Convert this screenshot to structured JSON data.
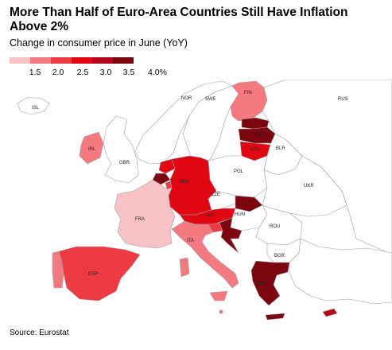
{
  "title": "More Than Half of Euro-Area Countries Still Have Inflation Above 2%",
  "subtitle": "Change in consumer price in June (YoY)",
  "source": "Source: Eurostat",
  "legend": {
    "ticks": [
      "1.5",
      "2.0",
      "2.5",
      "3.0",
      "3.5",
      "4.0%"
    ],
    "colors": [
      "#f9c2c5",
      "#f47a80",
      "#ee3b43",
      "#e00612",
      "#b3081a",
      "#7c0610"
    ]
  },
  "colors": {
    "non_euro_fill": "#ffffff",
    "border": "#9aa0a6",
    "sea": "#ffffff"
  },
  "countries": [
    {
      "code": "ISL",
      "label": "ISL",
      "bin": null
    },
    {
      "code": "NOR",
      "label": "NOR",
      "bin": null
    },
    {
      "code": "SWE",
      "label": "SWE",
      "bin": null
    },
    {
      "code": "FIN",
      "label": "FIN",
      "bin": 1
    },
    {
      "code": "EST",
      "label": "",
      "bin": 5
    },
    {
      "code": "LVA",
      "label": "LVA",
      "bin": 5
    },
    {
      "code": "LTU",
      "label": "LTU",
      "bin": 3
    },
    {
      "code": "RUS",
      "label": "RUS",
      "bin": null
    },
    {
      "code": "IRL",
      "label": "IRL",
      "bin": 1
    },
    {
      "code": "GBR",
      "label": "GBR",
      "bin": null
    },
    {
      "code": "BLR",
      "label": "BLR",
      "bin": null
    },
    {
      "code": "POL",
      "label": "POL",
      "bin": null
    },
    {
      "code": "DEU",
      "label": "DEU",
      "bin": 3
    },
    {
      "code": "NLD",
      "label": "",
      "bin": 3
    },
    {
      "code": "BEL",
      "label": "",
      "bin": 5
    },
    {
      "code": "LUX",
      "label": "",
      "bin": 2
    },
    {
      "code": "UKR",
      "label": "UKR",
      "bin": null
    },
    {
      "code": "CZE",
      "label": "CZE",
      "bin": null
    },
    {
      "code": "SVK",
      "label": "",
      "bin": 5
    },
    {
      "code": "FRA",
      "label": "FRA",
      "bin": 0
    },
    {
      "code": "AUT",
      "label": "AUT",
      "bin": 3
    },
    {
      "code": "HUN",
      "label": "HUN",
      "bin": null
    },
    {
      "code": "SVN",
      "label": "",
      "bin": 2
    },
    {
      "code": "HRV",
      "label": "",
      "bin": 5
    },
    {
      "code": "ROU",
      "label": "ROU",
      "bin": null
    },
    {
      "code": "ITA",
      "label": "ITA",
      "bin": 1
    },
    {
      "code": "BGR",
      "label": "BGR",
      "bin": null
    },
    {
      "code": "ESP",
      "label": "ESP",
      "bin": 2
    },
    {
      "code": "PRT",
      "label": "",
      "bin": 1
    },
    {
      "code": "TUR",
      "label": "TUR",
      "bin": null
    },
    {
      "code": "GRC",
      "label": "GRC",
      "bin": 5
    },
    {
      "code": "MLT",
      "label": "",
      "bin": 1
    },
    {
      "code": "CYP",
      "label": "",
      "bin": 4
    }
  ]
}
